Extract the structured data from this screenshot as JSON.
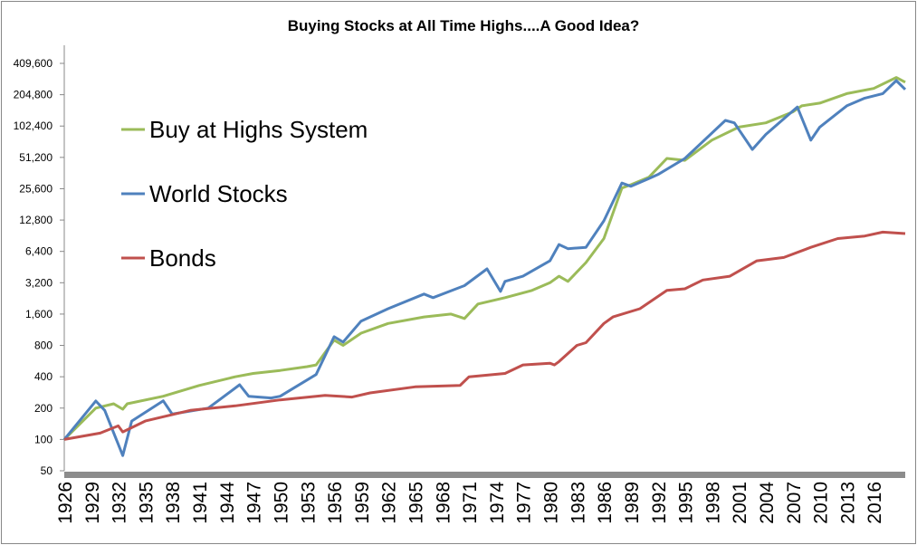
{
  "chart_data": {
    "type": "line",
    "title": "Buying Stocks at All Time Highs....A Good Idea?",
    "xlabel": "",
    "ylabel": "",
    "y_scale": "log2",
    "ylim": [
      50,
      409600
    ],
    "xlim": [
      1926,
      2019.5
    ],
    "y_ticks": [
      "50",
      "100",
      "200",
      "400",
      "800",
      "1,600",
      "3,200",
      "6,400",
      "12,800",
      "25,600",
      "51,200",
      "102,400",
      "204,800",
      "409,600"
    ],
    "y_tick_values": [
      50,
      100,
      200,
      400,
      800,
      1600,
      3200,
      6400,
      12800,
      25600,
      51200,
      102400,
      204800,
      409600
    ],
    "x_ticks": [
      1926,
      1929,
      1932,
      1935,
      1938,
      1941,
      1944,
      1947,
      1950,
      1953,
      1956,
      1959,
      1962,
      1965,
      1968,
      1971,
      1974,
      1977,
      1980,
      1983,
      1986,
      1989,
      1992,
      1995,
      1998,
      2001,
      2004,
      2007,
      2010,
      2013,
      2016
    ],
    "grid": false,
    "legend_placement": "top-left",
    "series": [
      {
        "name": "Buy at Highs System",
        "color": "#9bbb59",
        "x": [
          1926,
          1929.5,
          1931.5,
          1932.5,
          1933,
          1937,
          1941,
          1945,
          1947,
          1950,
          1953,
          1954,
          1956,
          1957,
          1959,
          1962,
          1966,
          1969,
          1970.5,
          1972,
          1975,
          1978,
          1980,
          1981,
          1982,
          1984,
          1986,
          1988,
          1989,
          1991,
          1993,
          1995,
          1998,
          2001,
          2004,
          2007,
          2008,
          2010,
          2013,
          2016,
          2018.5,
          2019.5
        ],
        "y": [
          100,
          200,
          220,
          195,
          220,
          260,
          330,
          400,
          430,
          460,
          500,
          520,
          900,
          800,
          1050,
          1300,
          1500,
          1600,
          1450,
          2000,
          2300,
          2700,
          3200,
          3700,
          3300,
          5000,
          8500,
          26000,
          28000,
          33000,
          50000,
          48000,
          75000,
          100000,
          110000,
          140000,
          160000,
          170000,
          210000,
          235000,
          300000,
          270000
        ]
      },
      {
        "name": "World Stocks",
        "color": "#4f81bd",
        "x": [
          1926,
          1929.5,
          1930.5,
          1932.5,
          1933.5,
          1937,
          1938,
          1942,
          1945.5,
          1946.5,
          1949,
          1950,
          1954,
          1956,
          1957,
          1959,
          1962,
          1966,
          1967,
          1970.5,
          1973,
          1974.5,
          1975,
          1977,
          1980,
          1981,
          1982,
          1984,
          1986,
          1988,
          1989,
          1991,
          1992,
          1995,
          1999.5,
          2000.5,
          2002.5,
          2004,
          2007.5,
          2009,
          2010,
          2013,
          2015,
          2017,
          2018.5,
          2019.5
        ],
        "y": [
          100,
          234,
          190,
          70,
          150,
          235,
          175,
          200,
          335,
          260,
          250,
          260,
          420,
          970,
          860,
          1370,
          1800,
          2490,
          2300,
          3000,
          4350,
          2640,
          3300,
          3700,
          5200,
          7450,
          6800,
          7000,
          12600,
          29000,
          27000,
          32000,
          35000,
          50000,
          116000,
          110000,
          61000,
          85000,
          156000,
          75000,
          100000,
          160000,
          190000,
          210000,
          280000,
          230000
        ]
      },
      {
        "name": "Bonds",
        "color": "#c0504d",
        "x": [
          1926,
          1930,
          1932,
          1932.5,
          1935,
          1940,
          1945,
          1950,
          1955,
          1958,
          1960,
          1965,
          1970,
          1971,
          1975,
          1977,
          1980,
          1980.5,
          1981,
          1983,
          1984,
          1986,
          1987,
          1990,
          1993,
          1995,
          1997,
          2000,
          2003,
          2006,
          2009,
          2012,
          2015,
          2017,
          2019.5
        ],
        "y": [
          100,
          115,
          135,
          118,
          150,
          190,
          210,
          240,
          265,
          255,
          280,
          320,
          330,
          400,
          430,
          520,
          540,
          520,
          560,
          800,
          850,
          1300,
          1500,
          1800,
          2700,
          2800,
          3400,
          3700,
          5200,
          5600,
          7000,
          8500,
          9000,
          9800,
          9500
        ]
      }
    ]
  }
}
